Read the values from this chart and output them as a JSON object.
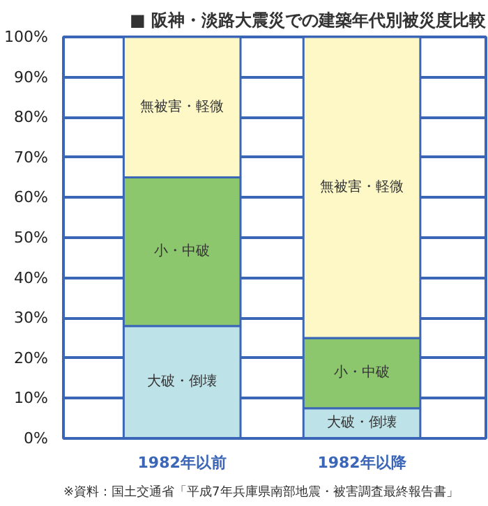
{
  "chart_data": {
    "type": "bar",
    "stacked": true,
    "title": "■ 阪神・淡路大震災での建築年代別被災度比較",
    "categories": [
      "1982年以前",
      "1982年以降"
    ],
    "series": [
      {
        "name": "大破・倒壊",
        "color": "#bde3e9",
        "values": [
          28,
          7.5
        ]
      },
      {
        "name": "小・中破",
        "color": "#8cc66d",
        "values": [
          37,
          17.5
        ]
      },
      {
        "name": "無被害・軽微",
        "color": "#fdf8c6",
        "values": [
          35,
          75
        ]
      }
    ],
    "ylim": [
      0,
      100
    ],
    "yticks": [
      {
        "value": 0,
        "label": "0%"
      },
      {
        "value": 10,
        "label": "10%"
      },
      {
        "value": 20,
        "label": "20%"
      },
      {
        "value": 30,
        "label": "30%"
      },
      {
        "value": 40,
        "label": "40%"
      },
      {
        "value": 50,
        "label": "50%"
      },
      {
        "value": 60,
        "label": "60%"
      },
      {
        "value": 70,
        "label": "70%"
      },
      {
        "value": 80,
        "label": "80%"
      },
      {
        "value": 90,
        "label": "90%"
      },
      {
        "value": 100,
        "label": "100%"
      }
    ],
    "grid": "y",
    "legend": false,
    "annotations": [
      "※資料：国土交通省「平成7年兵庫県南部地震・被害調査最終報告書」"
    ]
  }
}
